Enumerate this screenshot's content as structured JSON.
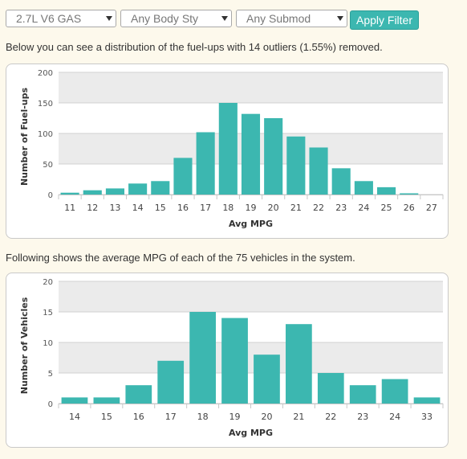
{
  "filters": {
    "engine": "2.7L V6 GAS",
    "body_style": "Any Body Sty",
    "submodel": "Any Submod",
    "apply_label": "Apply Filter"
  },
  "text": {
    "fuelups_desc": "Below you can see a distribution of the fuel-ups with 14 outliers (1.55%) removed.",
    "vehicles_desc": "Following shows the average MPG of each of the 75 vehicles in the system."
  },
  "colors": {
    "bar": "#3cb7b0",
    "band": "#ebebeb",
    "accent_button": "#3cb7b0"
  },
  "chart_data": [
    {
      "type": "bar",
      "xlabel": "Avg MPG",
      "ylabel": "Number of Fuel-ups",
      "ylim": [
        0,
        200
      ],
      "yticks": [
        0,
        50,
        100,
        150,
        200
      ],
      "categories": [
        "11",
        "12",
        "13",
        "14",
        "15",
        "16",
        "17",
        "18",
        "19",
        "20",
        "21",
        "22",
        "23",
        "24",
        "25",
        "26",
        "27"
      ],
      "values": [
        3,
        7,
        10,
        18,
        22,
        60,
        102,
        150,
        132,
        125,
        95,
        77,
        43,
        22,
        12,
        2,
        0
      ],
      "grid": "alternating bands"
    },
    {
      "type": "bar",
      "xlabel": "Avg MPG",
      "ylabel": "Number of Vehicles",
      "ylim": [
        0,
        20
      ],
      "yticks": [
        0,
        5,
        10,
        15,
        20
      ],
      "categories": [
        "14",
        "15",
        "16",
        "17",
        "18",
        "19",
        "20",
        "21",
        "22",
        "23",
        "24",
        "33"
      ],
      "values": [
        1,
        1,
        3,
        7,
        15,
        14,
        8,
        13,
        5,
        3,
        4,
        1
      ],
      "grid": "alternating bands"
    }
  ]
}
